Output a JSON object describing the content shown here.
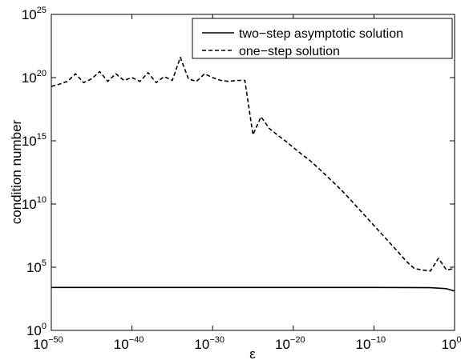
{
  "chart_data": {
    "type": "line",
    "title": "",
    "xlabel": "ε",
    "ylabel": "condition number",
    "xscale": "log",
    "yscale": "log",
    "xlim": [
      1e-50,
      1
    ],
    "ylim": [
      1,
      1e+25
    ],
    "x_ticks": [
      {
        "base": "10",
        "exp": "−50",
        "value": 1e-50
      },
      {
        "base": "10",
        "exp": "−40",
        "value": 1e-40
      },
      {
        "base": "10",
        "exp": "−30",
        "value": 1e-30
      },
      {
        "base": "10",
        "exp": "−20",
        "value": 1e-20
      },
      {
        "base": "10",
        "exp": "−10",
        "value": 1e-10
      },
      {
        "base": "10",
        "exp": "0",
        "value": 1
      }
    ],
    "y_ticks": [
      {
        "base": "10",
        "exp": "0",
        "value": 1
      },
      {
        "base": "10",
        "exp": "5",
        "value": 100000.0
      },
      {
        "base": "10",
        "exp": "10",
        "value": 10000000000.0
      },
      {
        "base": "10",
        "exp": "15",
        "value": 1000000000000000.0
      },
      {
        "base": "10",
        "exp": "20",
        "value": 1e+20
      },
      {
        "base": "10",
        "exp": "25",
        "value": 1e+25
      }
    ],
    "grid": false,
    "legend_position": "top-right",
    "series": [
      {
        "name": "two−step asymptotic solution",
        "line_style": "solid",
        "color": "#000000",
        "x": [
          1e-50,
          1e-40,
          1e-30,
          1e-20,
          1e-10,
          0.001,
          0.1,
          1
        ],
        "y": [
          2500.0,
          2500.0,
          2500.0,
          2500.0,
          2500.0,
          2400.0,
          2000.0,
          1300.0
        ]
      },
      {
        "name": "one−step solution",
        "line_style": "dashed",
        "color": "#000000",
        "x": [
          1e-50,
          1e-49,
          1e-48,
          1e-47,
          1e-46,
          1e-45,
          1e-44,
          1e-43,
          1e-42,
          1e-41,
          1e-40,
          1e-39,
          1e-38,
          1e-37,
          1e-36,
          1e-35,
          1e-34,
          1e-33,
          1e-32,
          1e-31,
          1e-30,
          1e-29,
          1e-28,
          1e-27,
          1e-26,
          1e-25,
          1e-24,
          1e-23,
          1e-22,
          1e-21,
          1e-20,
          1e-19,
          1e-18,
          1e-17,
          1e-16,
          1e-15,
          1e-14,
          1e-13,
          1e-12,
          1e-11,
          1e-10,
          1e-09,
          1e-08,
          1e-07,
          1e-06,
          1e-05,
          0.0001,
          0.001,
          0.01,
          0.1,
          1
        ],
        "y": [
          2e+19,
          3e+19,
          5e+19,
          2e+20,
          4e+19,
          8e+19,
          3e+20,
          5e+19,
          2e+20,
          6e+19,
          1e+20,
          5e+19,
          2.5e+20,
          4e+19,
          1.2e+20,
          6e+19,
          4e+21,
          8e+19,
          5e+19,
          2e+20,
          1e+20,
          6e+19,
          5e+19,
          6e+19,
          6e+19,
          3000000000000000.0,
          8e+16,
          1e+16,
          3000000000000000.0,
          1000000000000000.0,
          300000000000000.0,
          90000000000000.0,
          30000000000000.0,
          8000000000000.0,
          2000000000000.0,
          500000000000.0,
          120000000000.0,
          25000000000.0,
          5000000000.0,
          1000000000.0,
          200000000.0,
          40000000.0,
          8000000.0,
          1600000.0,
          300000.0,
          80000.0,
          60000.0,
          50000.0,
          500000.0,
          60000.0,
          80000.0
        ]
      }
    ]
  }
}
